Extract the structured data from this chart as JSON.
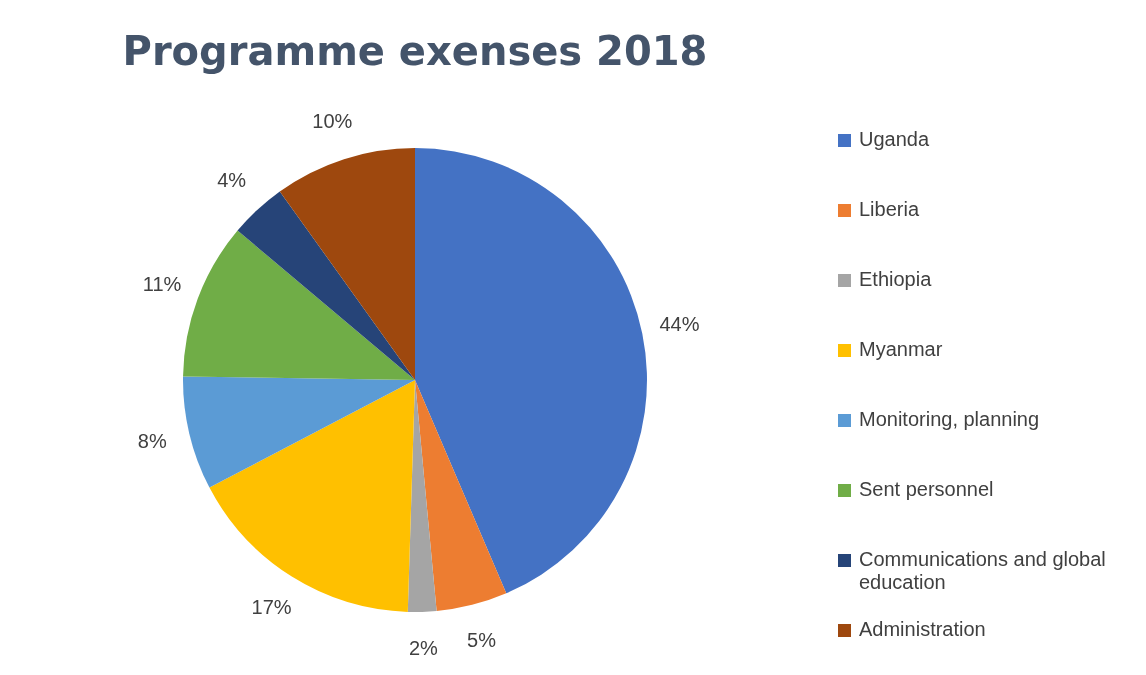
{
  "chart_data": {
    "type": "pie",
    "title": "Programme exenses 2018",
    "categories": [
      "Uganda",
      "Liberia",
      "Ethiopia",
      "Myanmar",
      "Monitoring, planning",
      "Sent personnel",
      "Communications and global education",
      "Administration"
    ],
    "values": [
      44,
      5,
      2,
      17,
      8,
      11,
      4,
      10
    ],
    "colors": [
      "#4472c4",
      "#ed7d31",
      "#a5a5a5",
      "#ffc000",
      "#5b9bd5",
      "#70ad47",
      "#264478",
      "#9e480e"
    ],
    "value_labels": [
      "44%",
      "5%",
      "2%",
      "17%",
      "8%",
      "11%",
      "4%",
      "10%"
    ],
    "legend": "right"
  }
}
